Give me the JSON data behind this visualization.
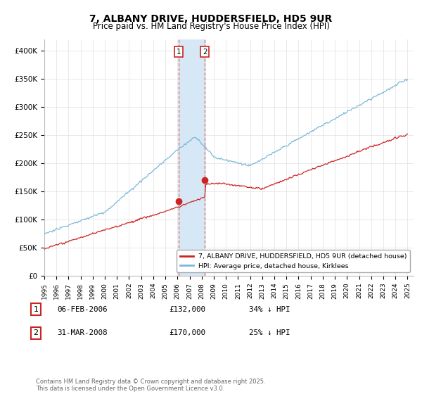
{
  "title": "7, ALBANY DRIVE, HUDDERSFIELD, HD5 9UR",
  "subtitle": "Price paid vs. HM Land Registry's House Price Index (HPI)",
  "hpi_color": "#7ab8d9",
  "price_color": "#cc2222",
  "highlight_color": "#d6e8f5",
  "ylim": [
    0,
    420000
  ],
  "yticks": [
    0,
    50000,
    100000,
    150000,
    200000,
    250000,
    300000,
    350000,
    400000
  ],
  "ytick_labels": [
    "£0",
    "£50K",
    "£100K",
    "£150K",
    "£200K",
    "£250K",
    "£300K",
    "£350K",
    "£400K"
  ],
  "legend_label_red": "7, ALBANY DRIVE, HUDDERSFIELD, HD5 9UR (detached house)",
  "legend_label_blue": "HPI: Average price, detached house, Kirklees",
  "transaction1_label": "1",
  "transaction1_date": "06-FEB-2006",
  "transaction1_price": "£132,000",
  "transaction1_hpi": "34% ↓ HPI",
  "transaction2_label": "2",
  "transaction2_date": "31-MAR-2008",
  "transaction2_price": "£170,000",
  "transaction2_hpi": "25% ↓ HPI",
  "footer": "Contains HM Land Registry data © Crown copyright and database right 2025.\nThis data is licensed under the Open Government Licence v3.0.",
  "t1_year": 2006.08,
  "t1_price": 132000,
  "t2_year": 2008.25,
  "t2_price": 170000
}
